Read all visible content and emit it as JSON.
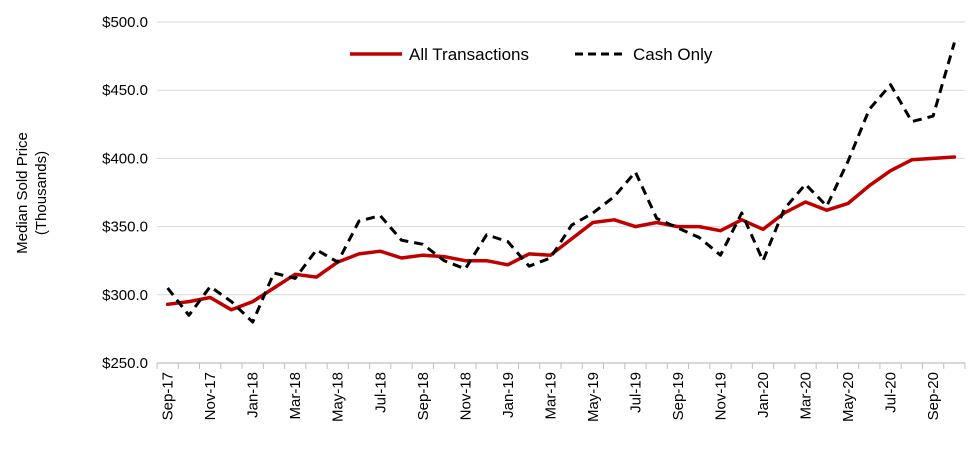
{
  "chart_data": {
    "type": "line",
    "title": "",
    "ylabel": "Median Sold Price (Thousands)",
    "ylabel_lines": [
      "Median Sold Price",
      "(Thousands)"
    ],
    "xlabel": "",
    "ylim": [
      250,
      500
    ],
    "yticks": [
      250,
      300,
      350,
      400,
      450,
      500
    ],
    "ytick_labels": [
      "$250.0",
      "$300.0",
      "$350.0",
      "$400.0",
      "$450.0",
      "$500.0"
    ],
    "grid": true,
    "legend_position": "top-center",
    "x": [
      "Sep-17",
      "Oct-17",
      "Nov-17",
      "Dec-17",
      "Jan-18",
      "Feb-18",
      "Mar-18",
      "Apr-18",
      "May-18",
      "Jun-18",
      "Jul-18",
      "Aug-18",
      "Sep-18",
      "Oct-18",
      "Nov-18",
      "Dec-18",
      "Jan-19",
      "Feb-19",
      "Mar-19",
      "Apr-19",
      "May-19",
      "Jun-19",
      "Jul-19",
      "Aug-19",
      "Sep-19",
      "Oct-19",
      "Nov-19",
      "Dec-19",
      "Jan-20",
      "Feb-20",
      "Mar-20",
      "Apr-20",
      "May-20",
      "Jun-20",
      "Jul-20",
      "Aug-20",
      "Sep-20",
      "Oct-20"
    ],
    "x_tick_labels": [
      "Sep-17",
      "Nov-17",
      "Jan-18",
      "Mar-18",
      "May-18",
      "Jul-18",
      "Sep-18",
      "Nov-18",
      "Jan-19",
      "Mar-19",
      "May-19",
      "Jul-19",
      "Sep-19",
      "Nov-19",
      "Jan-20",
      "Mar-20",
      "May-20",
      "Jul-20",
      "Sep-20"
    ],
    "series": [
      {
        "name": "All Transactions",
        "color": "#c00000",
        "style": "solid",
        "values": [
          293,
          295,
          298,
          289,
          295,
          305,
          315,
          313,
          324,
          330,
          332,
          327,
          329,
          328,
          325,
          325,
          322,
          330,
          329,
          341,
          353,
          355,
          350,
          353,
          350,
          350,
          347,
          355,
          348,
          360,
          368,
          362,
          367,
          380,
          391,
          399,
          400,
          401
        ]
      },
      {
        "name": "Cash Only",
        "color": "#000000",
        "style": "dashed",
        "values": [
          305,
          285,
          306,
          295,
          280,
          316,
          312,
          333,
          324,
          354,
          358,
          340,
          337,
          325,
          319,
          344,
          339,
          321,
          327,
          351,
          360,
          372,
          390,
          356,
          349,
          342,
          329,
          360,
          325,
          363,
          381,
          365,
          398,
          436,
          454,
          427,
          431,
          485
        ]
      }
    ]
  }
}
